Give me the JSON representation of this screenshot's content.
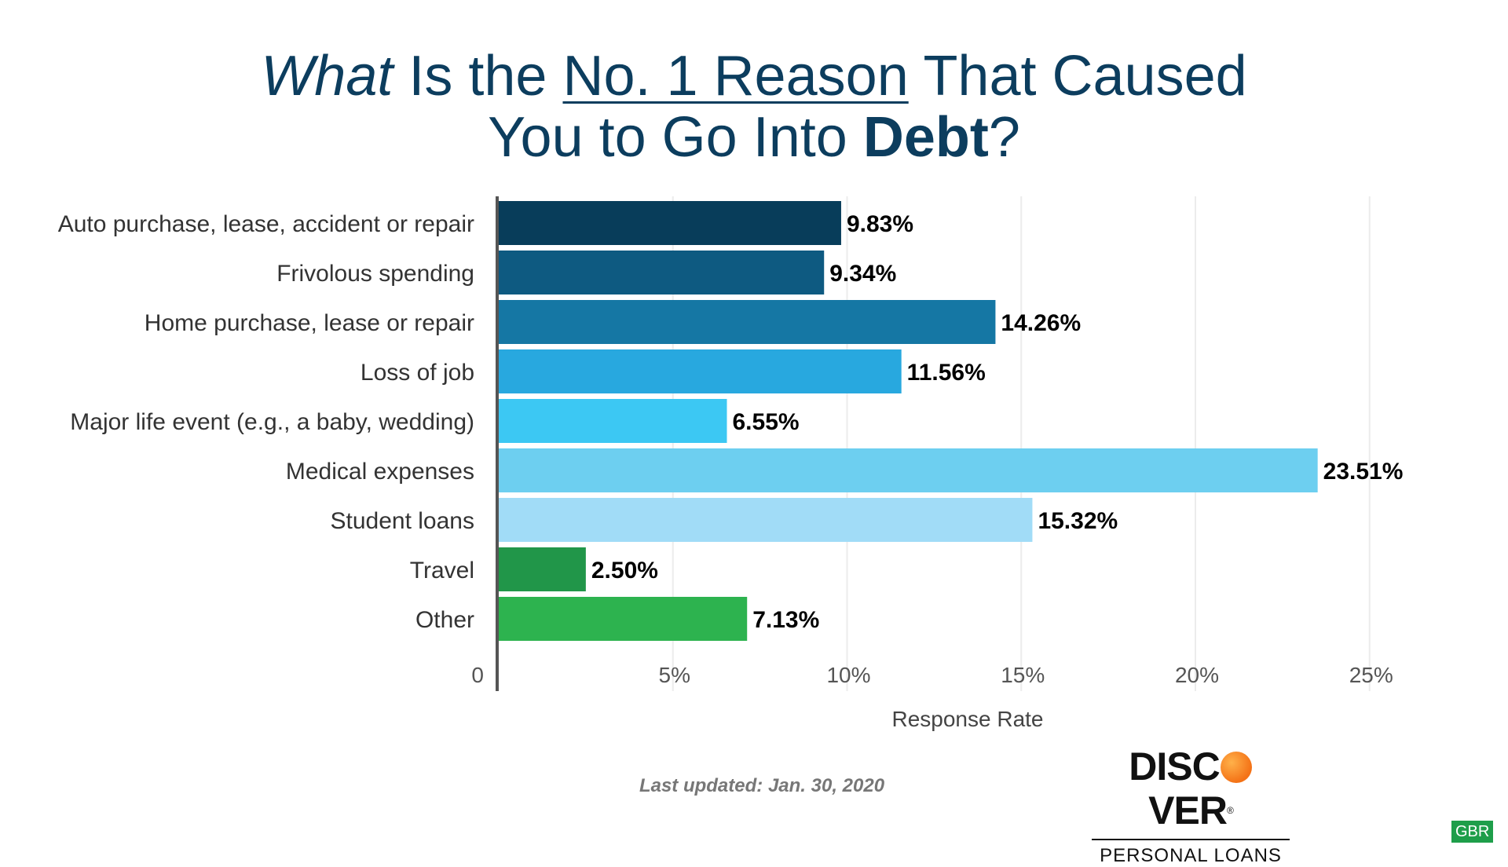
{
  "title": {
    "line1": [
      {
        "text": "What",
        "style": "italic"
      },
      {
        "text": " Is the ",
        "style": "normal"
      },
      {
        "text": "No. 1 Reason",
        "style": "underline"
      },
      {
        "text": " That Caused",
        "style": "normal"
      }
    ],
    "line2": [
      {
        "text": "You to Go Into ",
        "style": "normal"
      },
      {
        "text": "Debt",
        "style": "bold"
      },
      {
        "text": "?",
        "style": "normal"
      }
    ]
  },
  "chart_data": {
    "type": "bar",
    "orientation": "horizontal",
    "categories": [
      "Auto purchase, lease, accident or repair",
      "Frivolous spending",
      "Home purchase, lease or repair",
      "Loss of job",
      "Major life event (e.g., a baby, wedding)",
      "Medical expenses",
      "Student loans",
      "Travel",
      "Other"
    ],
    "values": [
      9.83,
      9.34,
      14.26,
      11.56,
      6.55,
      23.51,
      15.32,
      2.5,
      7.13
    ],
    "value_labels": [
      "9.83%",
      "9.34%",
      "14.26%",
      "11.56%",
      "6.55%",
      "23.51%",
      "15.32%",
      "2.50%",
      "7.13%"
    ],
    "colors": [
      "#083d5a",
      "#0e5a81",
      "#1577a4",
      "#28a8df",
      "#3cc8f3",
      "#6dcff0",
      "#a1dcf7",
      "#219649",
      "#2db34f"
    ],
    "xlabel": "Response Rate",
    "xlim": [
      0,
      25
    ],
    "xticks": [
      0,
      5,
      10,
      15,
      20,
      25
    ],
    "xtick_labels": [
      "0",
      "5%",
      "10%",
      "15%",
      "20%",
      "25%"
    ],
    "grid": true
  },
  "footer": {
    "updated": "Last updated: Jan. 30, 2020",
    "brand": {
      "name_part1": "DISC",
      "name_part2": "VER",
      "registered": "®",
      "sub": "PERSONAL LOANS"
    },
    "badge": "GBR"
  }
}
